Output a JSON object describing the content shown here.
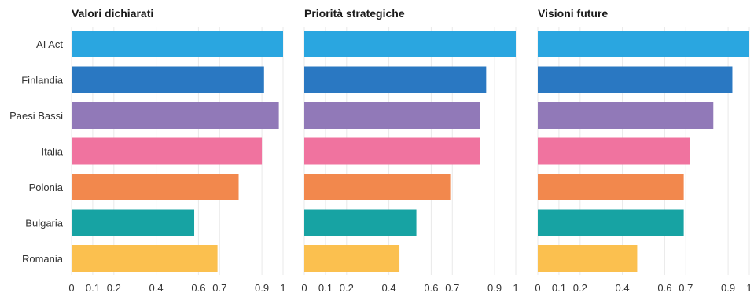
{
  "chart_data": {
    "type": "bar",
    "orientation": "horizontal",
    "categories": [
      "AI Act",
      "Finlandia",
      "Paesi Bassi",
      "Italia",
      "Polonia",
      "Bulgaria",
      "Romania"
    ],
    "colors": [
      "#2aa6e0",
      "#2a78c2",
      "#9179b8",
      "#f0739f",
      "#f2884d",
      "#17a3a3",
      "#fbc04f"
    ],
    "xlim": [
      0,
      1
    ],
    "x_ticks": [
      0,
      0.1,
      0.2,
      0.4,
      0.6,
      0.7,
      0.9,
      1
    ],
    "x_tick_labels": [
      "0",
      "0.1",
      "0.2",
      "0.4",
      "0.6",
      "0.7",
      "0.9",
      "1"
    ],
    "grid": true,
    "panels": [
      {
        "title": "Valori dichiarati",
        "values": [
          1.0,
          0.91,
          0.98,
          0.9,
          0.79,
          0.58,
          0.69
        ]
      },
      {
        "title": "Priorità strategiche",
        "values": [
          1.0,
          0.86,
          0.83,
          0.83,
          0.69,
          0.53,
          0.45
        ]
      },
      {
        "title": "Visioni future",
        "values": [
          1.0,
          0.92,
          0.83,
          0.72,
          0.69,
          0.69,
          0.47
        ]
      }
    ]
  }
}
